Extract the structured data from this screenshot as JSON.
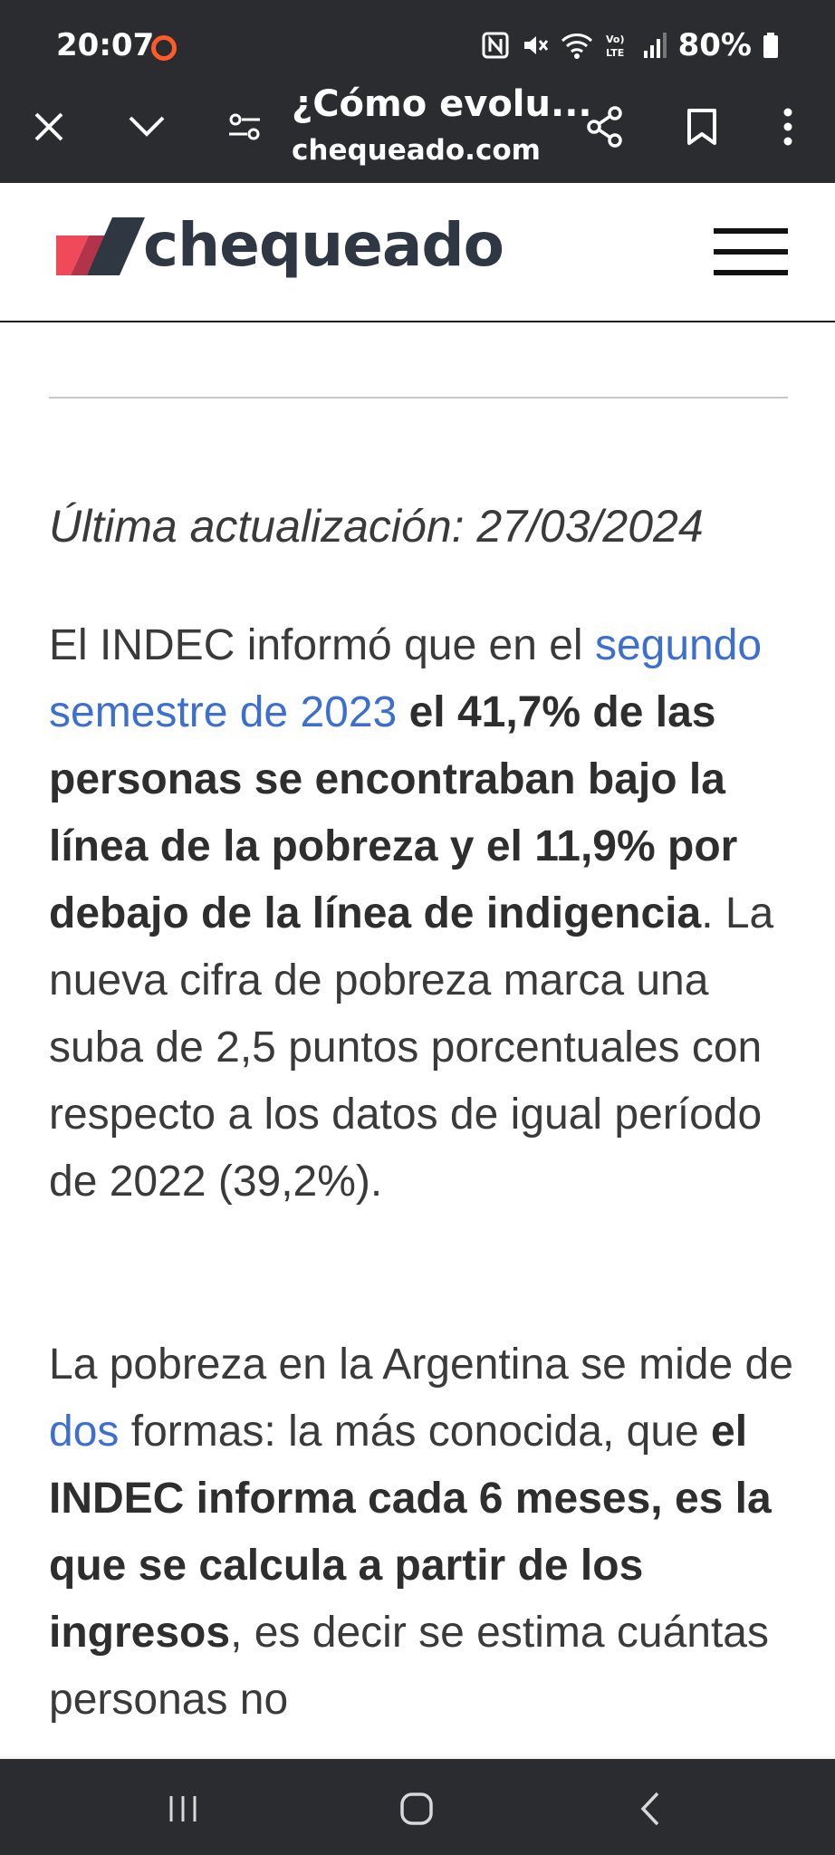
{
  "status_bar": {
    "time": "20:07",
    "battery": "80%",
    "icons": [
      "record-icon",
      "nfc-icon",
      "mute-icon",
      "wifi-icon",
      "volte-icon",
      "signal-icon",
      "battery-icon"
    ]
  },
  "browser": {
    "page_title": "¿Cómo evolu...",
    "domain": "chequeado.com",
    "icons": [
      "close-icon",
      "chevron-down-icon",
      "site-settings-icon",
      "share-icon",
      "bookmark-icon",
      "more-options-icon"
    ]
  },
  "site": {
    "logo_text": "chequeado",
    "menu_icon": "hamburger-menu-icon",
    "colors": {
      "logo_red": "#f04a5a",
      "logo_dark": "#2f3742",
      "link": "#3d6fcf"
    }
  },
  "article": {
    "updated": "Última actualización: 27/03/2024",
    "p1": {
      "t1": "El INDEC informó que en el ",
      "link": "segundo semestre de 2023",
      "bold": " el 41,7% de las personas se encontraban bajo la línea de la pobreza y el 11,9% por debajo de la línea de indigencia",
      "t2": ". La nueva cifra de pobreza marca una suba de 2,5 puntos porcentuales con respecto a los datos de igual período de 2022 (39,2%)."
    },
    "p2": {
      "t1": "La pobreza en la Argentina se mide de ",
      "link": "dos",
      "t2": " formas: la más conocida, que ",
      "bold": "el INDEC informa cada 6 meses, es la que se calcula a partir de los ingresos",
      "t3": ", es decir se estima cuántas personas no"
    }
  },
  "system_nav": {
    "icons": [
      "recent-apps-icon",
      "home-icon",
      "back-icon"
    ]
  }
}
